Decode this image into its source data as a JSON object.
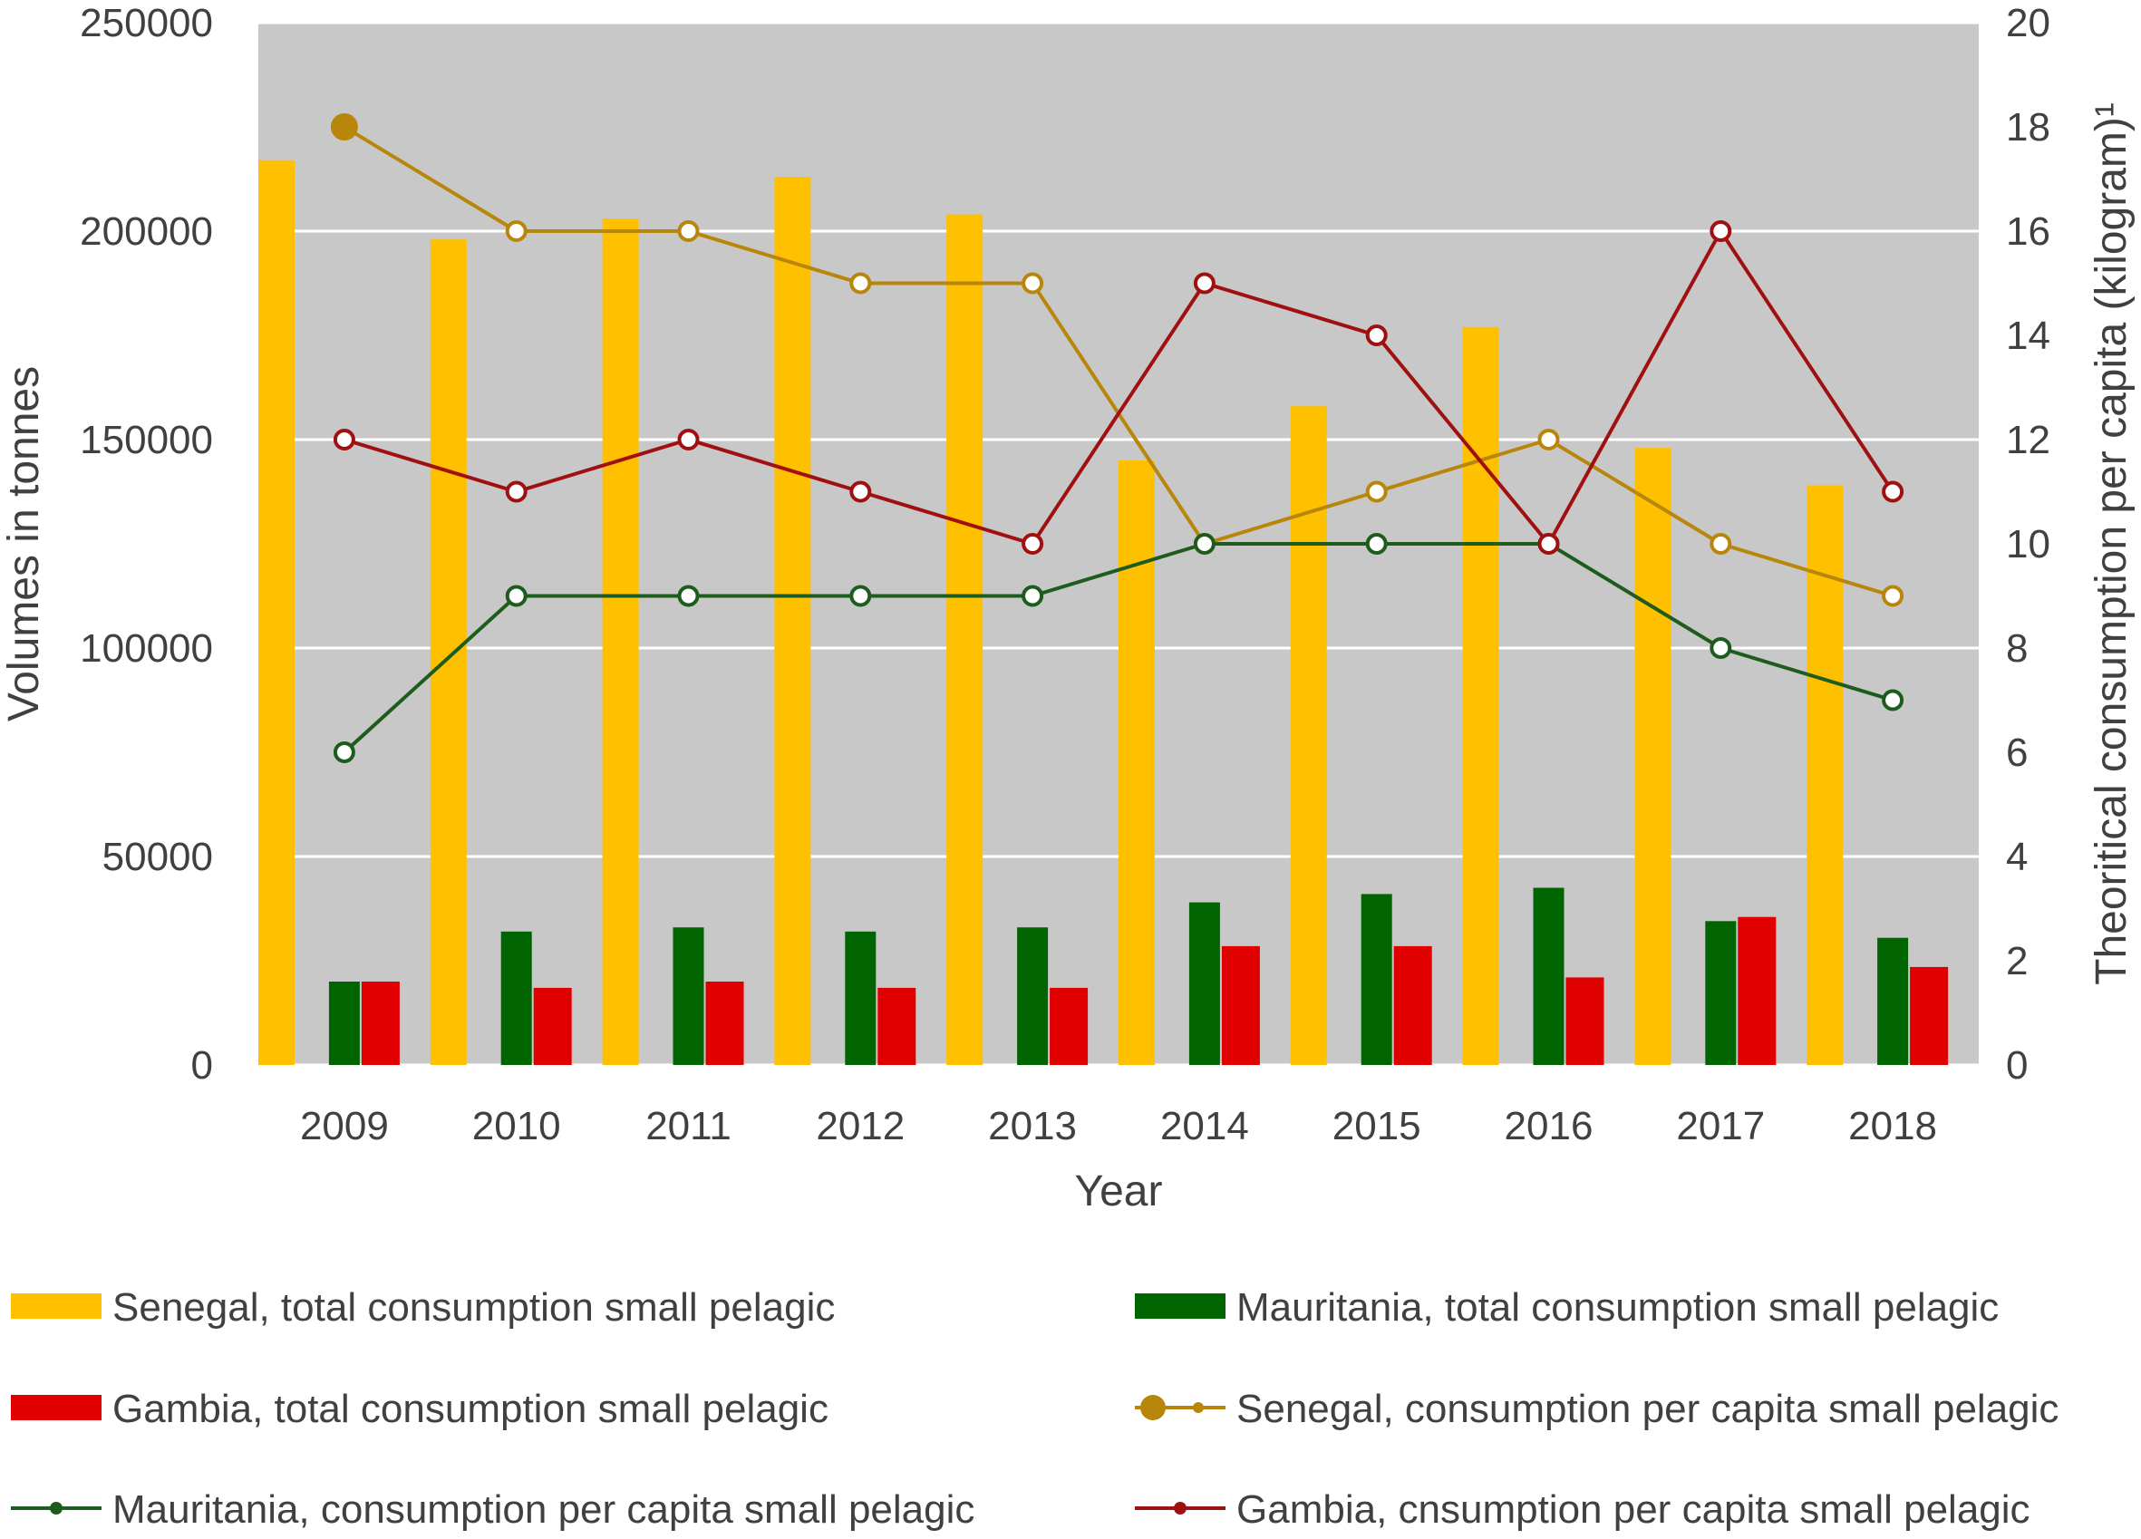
{
  "chart_data": {
    "type": "bar",
    "title": "",
    "xlabel": "Year",
    "ylabel": "Volumes in tonnes",
    "y2label": "Theoritical consumption per capita (kilogram)¹",
    "categories": [
      "2009",
      "2010",
      "2011",
      "2012",
      "2013",
      "2014",
      "2015",
      "2016",
      "2017",
      "2018"
    ],
    "ylim": [
      0,
      250000
    ],
    "y2lim": [
      0,
      20
    ],
    "yticks": [
      "0",
      "50000",
      "100000",
      "150000",
      "200000",
      "250000"
    ],
    "y2ticks": [
      "0",
      "2",
      "4",
      "6",
      "8",
      "10",
      "12",
      "14",
      "16",
      "18",
      "20"
    ],
    "grid": true,
    "legend_position": "bottom",
    "series": [
      {
        "name": "Senegal, total consumption small pelagic",
        "kind": "bar",
        "axis": "left",
        "color": "#FFC000",
        "values": [
          217000,
          198000,
          203000,
          213000,
          204000,
          145000,
          158000,
          177000,
          148000,
          139000
        ]
      },
      {
        "name": "Mauritania, total consumption small pelagic",
        "kind": "bar",
        "axis": "left",
        "color": "#006400",
        "values": [
          20000,
          32000,
          33000,
          32000,
          33000,
          39000,
          41000,
          42500,
          34500,
          30500
        ]
      },
      {
        "name": "Gambia, total consumption small pelagic",
        "kind": "bar",
        "axis": "left",
        "color": "#E00000",
        "values": [
          20000,
          18500,
          20000,
          18500,
          18500,
          28500,
          28500,
          21000,
          35500,
          23500
        ]
      },
      {
        "name": "Senegal, consumption per capita small pelagic",
        "kind": "line",
        "axis": "right",
        "color": "#B8860B",
        "values": [
          18,
          16,
          16,
          15,
          15,
          10,
          11,
          12,
          10,
          9
        ]
      },
      {
        "name": "Mauritania, consumption per capita small pelagic",
        "kind": "line",
        "axis": "right",
        "color": "#1E5C1E",
        "values": [
          6,
          9,
          9,
          9,
          9,
          10,
          10,
          10,
          8,
          7
        ]
      },
      {
        "name": "Gambia, cnsumption per capita small pelagic",
        "kind": "line",
        "axis": "right",
        "color": "#A01010",
        "values": [
          12,
          11,
          12,
          11,
          10,
          15,
          14,
          10,
          16,
          11
        ]
      }
    ]
  }
}
